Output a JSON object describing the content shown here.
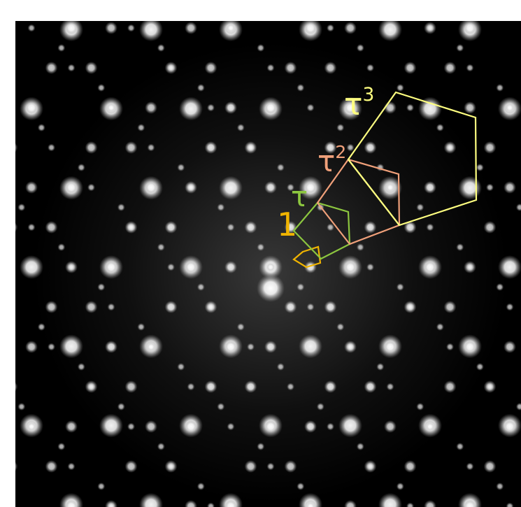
{
  "image": {
    "description_kind": "electron-diffraction-pattern",
    "background_color": "#000000",
    "spot_color": "#ffffff"
  },
  "labels": {
    "one": {
      "text": "1",
      "color": "#f0b400"
    },
    "tau": {
      "base": "τ",
      "sup": "",
      "color": "#8cc63f"
    },
    "tau2": {
      "base": "τ",
      "sup": "2",
      "color": "#f0a07a"
    },
    "tau3": {
      "base": "τ",
      "sup": "3",
      "color": "#ffff80"
    }
  },
  "pentagons": [
    {
      "name": "pentagon-1",
      "color": "#f0b400"
    },
    {
      "name": "pentagon-tau",
      "color": "#8cc63f"
    },
    {
      "name": "pentagon-tau2",
      "color": "#f0a07a"
    },
    {
      "name": "pentagon-tau3",
      "color": "#ffff80"
    }
  ]
}
